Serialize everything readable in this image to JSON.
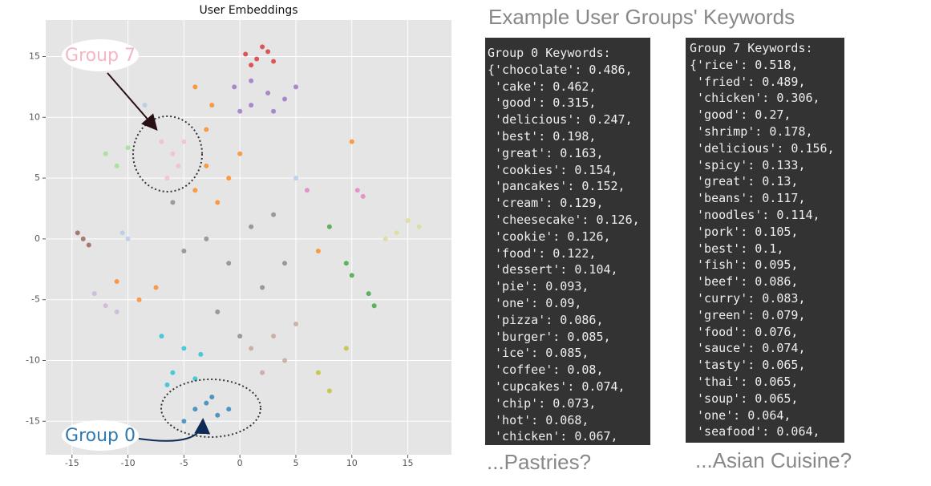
{
  "chart_data": {
    "type": "scatter",
    "title": "User Embeddings",
    "xlim": [
      -17.35,
      18.9
    ],
    "ylim": [
      -17.75,
      18.0
    ],
    "xticks": [
      -15,
      -10,
      -5,
      0,
      5,
      10,
      15
    ],
    "yticks": [
      -15,
      -10,
      -5,
      0,
      5,
      10,
      15
    ],
    "grid": true,
    "series": [
      {
        "color": "#d62728",
        "x": [
          0.5,
          1.5,
          2.5,
          3,
          1,
          2
        ],
        "values": [
          15.2,
          14.8,
          15.4,
          14.6,
          14.3,
          15.8
        ]
      },
      {
        "color": "#9467bd",
        "x": [
          -0.5,
          1,
          2.5,
          4,
          3,
          1,
          5,
          0
        ],
        "values": [
          12.5,
          13,
          12,
          11.5,
          10.5,
          11,
          12.5,
          10.5
        ]
      },
      {
        "color": "#ff7f0e",
        "x": [
          -3,
          -1,
          -4,
          -2,
          0,
          -3,
          -4,
          -2.5,
          -11,
          -9,
          -7.5,
          7,
          10
        ],
        "values": [
          6,
          5,
          4,
          3,
          7,
          9,
          12.5,
          11,
          -3.5,
          -5,
          -4,
          -1,
          8
        ]
      },
      {
        "color": "#7f7f7f",
        "x": [
          -3,
          -1,
          1,
          2,
          -5,
          3,
          -2,
          0,
          4,
          -6
        ],
        "values": [
          0,
          -2,
          1,
          -4,
          -1,
          2,
          -6,
          -8,
          -2,
          3
        ]
      },
      {
        "color": "#f7b6d2",
        "x": [
          -7,
          -6,
          -5.5,
          -6.5,
          -5
        ],
        "values": [
          8,
          7,
          6,
          5,
          8
        ]
      },
      {
        "color": "#1f77b4",
        "x": [
          -4,
          -3,
          -2,
          -1,
          -5,
          -2.5
        ],
        "values": [
          -14,
          -13.5,
          -14.5,
          -14,
          -15,
          -13
        ]
      },
      {
        "color": "#17becf",
        "x": [
          -6,
          -5,
          -4,
          -6.5,
          -3.5,
          -7
        ],
        "values": [
          -11,
          -9,
          -11.5,
          -12,
          -9.5,
          -8
        ]
      },
      {
        "color": "#c49c94",
        "x": [
          1,
          3,
          4,
          2,
          5
        ],
        "values": [
          -9,
          -8,
          -10,
          -11,
          -7
        ]
      },
      {
        "color": "#2ca02c",
        "x": [
          10,
          11.5,
          12,
          9.5,
          8
        ],
        "values": [
          -3,
          -4.5,
          -5.5,
          -2,
          1
        ]
      },
      {
        "color": "#98df8a",
        "x": [
          -12,
          -11,
          -10
        ],
        "values": [
          7,
          6,
          7.5
        ]
      },
      {
        "color": "#aec7e8",
        "x": [
          -10,
          -10.5,
          -8.5,
          5
        ],
        "values": [
          0,
          0.5,
          11,
          5
        ]
      },
      {
        "color": "#8c564b",
        "x": [
          -14.5,
          -13.5,
          -14
        ],
        "values": [
          0.5,
          -0.5,
          0
        ]
      },
      {
        "color": "#e377c2",
        "x": [
          10.5,
          11,
          6
        ],
        "values": [
          4,
          3.5,
          4
        ]
      },
      {
        "color": "#dbdb8d",
        "x": [
          14,
          15,
          16,
          13
        ],
        "values": [
          0.5,
          1.5,
          1,
          0
        ]
      },
      {
        "color": "#bcbd22",
        "x": [
          9.5,
          7,
          8
        ],
        "values": [
          -9,
          -11,
          -12.5
        ]
      },
      {
        "color": "#c5b0d5",
        "x": [
          -12,
          -11,
          -13
        ],
        "values": [
          -5.5,
          -6,
          -4.5
        ]
      }
    ],
    "annotations": [
      "Group 7",
      "Group 0"
    ]
  },
  "heading": "Example User Groups' Keywords",
  "groups": [
    {
      "header": "Group 0 Keywords:",
      "lines": [
        "{'chocolate': 0.486,",
        " 'cake': 0.462,",
        " 'good': 0.315,",
        " 'delicious': 0.247,",
        " 'best': 0.198,",
        " 'great': 0.163,",
        " 'cookies': 0.154,",
        " 'pancakes': 0.152,",
        " 'cream': 0.129,",
        " 'cheesecake': 0.126,",
        " 'cookie': 0.126,",
        " 'food': 0.122,",
        " 'dessert': 0.104,",
        " 'pie': 0.093,",
        " 'one': 0.09,",
        " 'pizza': 0.086,",
        " 'burger': 0.085,",
        " 'ice': 0.085,",
        " 'coffee': 0.08,",
        " 'cupcakes': 0.074,",
        " 'chip': 0.073,",
        " 'hot': 0.068,",
        " 'chicken': 0.067,"
      ],
      "caption": "...Pastries?"
    },
    {
      "header": "Group 7 Keywords:",
      "lines": [
        "{'rice': 0.518,",
        " 'fried': 0.489,",
        " 'chicken': 0.306,",
        " 'good': 0.27,",
        " 'shrimp': 0.178,",
        " 'delicious': 0.156,",
        " 'spicy': 0.133,",
        " 'great': 0.13,",
        " 'beans': 0.117,",
        " 'noodles': 0.114,",
        " 'pork': 0.105,",
        " 'best': 0.1,",
        " 'fish': 0.095,",
        " 'beef': 0.086,",
        " 'curry': 0.083,",
        " 'green': 0.079,",
        " 'food': 0.076,",
        " 'sauce': 0.074,",
        " 'tasty': 0.065,",
        " 'thai': 0.065,",
        " 'soup': 0.065,",
        " 'one': 0.064,",
        " 'seafood': 0.064,"
      ],
      "caption": "...Asian Cuisine?"
    }
  ]
}
